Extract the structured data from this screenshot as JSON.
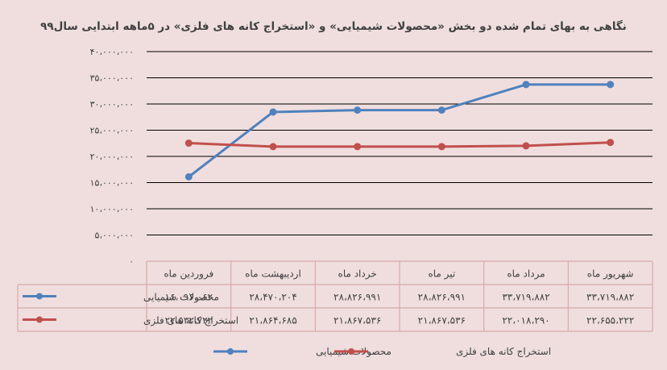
{
  "chart_data": {
    "type": "line",
    "title": "نگاهی به بهای تمام شده دو بخش «محصولات شیمیایی» و «استخراج کانه های فلزی» در ۵ماهه ابتدایی سال۹۹",
    "categories": [
      "فروردین ماه",
      "اردیبهشت ماه",
      "خرداد ماه",
      "تیر ماه",
      "مرداد ماه",
      "شهریور ماه"
    ],
    "series": [
      {
        "name": "محصولات شیمیایی",
        "color": "#4f81bd",
        "values": [
          16096062,
          28470204,
          28826991,
          28826991,
          33719882,
          33719882
        ],
        "labels": [
          "۱۶،۰۹۶،۰۶۲",
          "۲۸،۴۷۰،۲۰۴",
          "۲۸،۸۲۶،۹۹۱",
          "۲۸،۸۲۶،۹۹۱",
          "۳۳،۷۱۹،۸۸۲",
          "۳۳،۷۱۹،۸۸۲"
        ]
      },
      {
        "name": "استخراج کانه های فلزی",
        "color": "#c0504d",
        "values": [
          22532722,
          21864685,
          21867536,
          21867536,
          22018290,
          22655222
        ],
        "labels": [
          "۲۲،۵۳۲،۷۲۲",
          "۲۱،۸۶۴،۶۸۵",
          "۲۱،۸۶۷،۵۳۶",
          "۲۱،۸۶۷،۵۳۶",
          "۲۲،۰۱۸،۲۹۰",
          "۲۲،۶۵۵،۲۲۲"
        ]
      }
    ],
    "yticks": [
      0,
      5000000,
      10000000,
      15000000,
      20000000,
      25000000,
      30000000,
      35000000,
      40000000
    ],
    "ytick_labels": [
      "۰",
      "۵،۰۰۰،۰۰۰",
      "۱۰،۰۰۰،۰۰۰",
      "۱۵،۰۰۰،۰۰۰",
      "۲۰،۰۰۰،۰۰۰",
      "۲۵،۰۰۰،۰۰۰",
      "۳۰،۰۰۰،۰۰۰",
      "۳۵،۰۰۰،۰۰۰",
      "۴۰،۰۰۰،۰۰۰"
    ],
    "ylim": [
      0,
      40000000
    ],
    "grid": true,
    "legend_position": "bottom",
    "data_table": true
  }
}
